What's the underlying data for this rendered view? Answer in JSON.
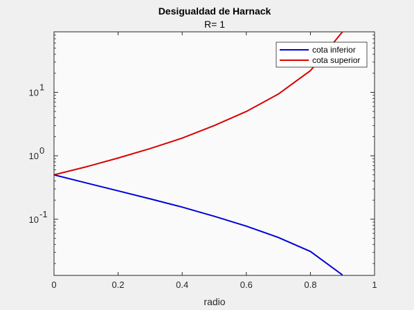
{
  "chart_data": {
    "type": "line",
    "title": "Desigualdad de Harnack",
    "subtitle": "R= 1",
    "xlabel": "radio",
    "ylabel": "",
    "xlim": [
      0,
      1
    ],
    "ylim": [
      0.013,
      90
    ],
    "yscale": "log",
    "xticks": [
      "0",
      "0.2",
      "0.4",
      "0.6",
      "0.8",
      "1"
    ],
    "xtick_values": [
      0,
      0.2,
      0.4,
      0.6,
      0.8,
      1
    ],
    "yticks": [
      {
        "value": 0.1,
        "base": "10",
        "exp": "-1"
      },
      {
        "value": 1,
        "base": "10",
        "exp": "0"
      },
      {
        "value": 10,
        "base": "10",
        "exp": "1"
      }
    ],
    "grid": false,
    "legend_position": "top-right",
    "series": [
      {
        "name": "cota inferior",
        "color": "#0000d9",
        "x": [
          0,
          0.1,
          0.2,
          0.3,
          0.4,
          0.5,
          0.6,
          0.7,
          0.8,
          0.9
        ],
        "y": [
          0.5,
          0.374,
          0.28,
          0.209,
          0.155,
          0.111,
          0.0778,
          0.0515,
          0.031,
          0.0132
        ]
      },
      {
        "name": "cota superior",
        "color": "#d90000",
        "x": [
          0,
          0.1,
          0.2,
          0.3,
          0.4,
          0.5,
          0.6,
          0.7,
          0.8,
          0.9
        ],
        "y": [
          0.5,
          0.67,
          0.92,
          1.3,
          1.9,
          3.0,
          5.0,
          9.4,
          22.0,
          90.0
        ]
      }
    ]
  }
}
